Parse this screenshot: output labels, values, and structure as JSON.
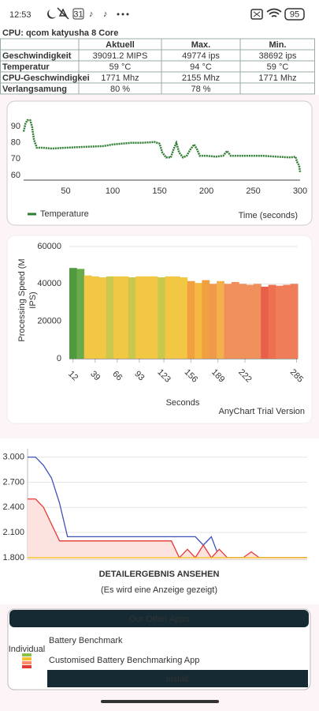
{
  "status_bar": {
    "time": "12:53",
    "calendar_day": "31",
    "battery": "95"
  },
  "header": {
    "cpu": "CPU: qcom katyusha 8 Core"
  },
  "table": {
    "columns": [
      "Aktuell",
      "Max.",
      "Min."
    ],
    "rows": [
      {
        "label": "Geschwindigkeit",
        "cells": [
          "39091.2 MIPS",
          "49774 ips",
          "38692 ips"
        ]
      },
      {
        "label": "Temperatur",
        "cells": [
          "59 °C",
          "94 °C",
          "59 °C"
        ]
      },
      {
        "label": "CPU-Geschwindigkei",
        "cells": [
          "1771 Mhz",
          "2155 Mhz",
          "1771 Mhz"
        ]
      },
      {
        "label": "Verlangsamung",
        "cells": [
          "80 %",
          "78 %"
        ]
      }
    ]
  },
  "chart_data": [
    {
      "type": "line",
      "x_label": "Time (seconds)",
      "series": [
        {
          "name": "Temperature",
          "color": "#2e7d32",
          "x": [
            5,
            7,
            9,
            12,
            14,
            16,
            19,
            25,
            35,
            50,
            70,
            90,
            100,
            110,
            120,
            130,
            145,
            150,
            153,
            157,
            162,
            165,
            168,
            171,
            175,
            179,
            183,
            187,
            190,
            193,
            200,
            210,
            218,
            222,
            226,
            240,
            260,
            275,
            290,
            295,
            297,
            299,
            300
          ],
          "values": [
            87,
            92,
            94,
            94,
            90,
            82,
            77,
            77,
            76.5,
            77,
            77.5,
            78,
            79,
            79.5,
            80,
            80,
            80.5,
            79.5,
            74,
            71,
            71,
            76,
            80,
            74,
            71,
            72,
            76,
            79,
            76,
            72,
            72,
            71.5,
            72,
            75,
            72,
            72,
            72,
            71.5,
            71,
            71.5,
            68,
            66,
            62
          ]
        }
      ],
      "xlim": [
        5,
        300
      ],
      "xticks": [
        50,
        100,
        150,
        200,
        250,
        300
      ],
      "ylim": [
        57,
        96
      ],
      "yticks": [
        60,
        70,
        80,
        90
      ],
      "legend": "bottom-left",
      "grid": false
    },
    {
      "type": "bar",
      "x_label": "Seconds",
      "y_label": [
        "Processing Speed (M",
        "IPS)"
      ],
      "watermark": "AnyChart Trial Version",
      "x": [
        12,
        21,
        30,
        39,
        48,
        57,
        66,
        75,
        84,
        93,
        102,
        111,
        120,
        129,
        138,
        147,
        156,
        165,
        174,
        183,
        192,
        201,
        210,
        219,
        228,
        237,
        246,
        255,
        264,
        273,
        282
      ],
      "values": [
        48500,
        48000,
        44500,
        44000,
        43500,
        44000,
        44000,
        44000,
        43500,
        44000,
        44000,
        44000,
        43500,
        44000,
        44000,
        43500,
        41500,
        40500,
        42000,
        40000,
        41500,
        40000,
        41000,
        40000,
        39500,
        40000,
        38500,
        39500,
        39000,
        39500,
        40000
      ],
      "colors": [
        "#4e9a3e",
        "#6aaa4a",
        "#f2c744",
        "#f2c744",
        "#f2c744",
        "#c9c84c",
        "#f2c744",
        "#f2c744",
        "#c9c84c",
        "#f2c744",
        "#f2c744",
        "#f2c744",
        "#c9c84c",
        "#f2c744",
        "#f2c744",
        "#f2c744",
        "#f0a040",
        "#f5b942",
        "#f0a040",
        "#ee9a4a",
        "#f4b04a",
        "#f0905a",
        "#f0905a",
        "#f0905a",
        "#f0905a",
        "#f0905a",
        "#e8604a",
        "#ee7050",
        "#f07d5a",
        "#f07d5a",
        "#f07d5a"
      ],
      "xlim": [
        7.5,
        286.5
      ],
      "xticks": [
        12,
        39,
        66,
        93,
        123,
        156,
        189,
        222,
        285
      ],
      "ylim": [
        0,
        60000
      ],
      "yticks": [
        0,
        20000,
        40000,
        60000
      ],
      "grid": true
    },
    {
      "type": "line",
      "series": [
        {
          "color": "#3f51b5",
          "values": [
            3.0,
            3.0,
            2.9,
            2.75,
            2.45,
            2.05,
            2.05,
            2.05,
            2.05,
            2.05,
            2.05,
            2.05,
            2.05,
            2.05,
            2.05,
            2.05,
            2.05,
            2.05,
            2.05,
            2.05,
            2.05,
            2.05,
            1.95,
            2.05,
            1.8,
            1.8,
            1.8,
            1.8,
            1.8,
            1.8,
            1.8,
            1.8,
            1.8,
            1.8,
            1.8,
            1.8
          ]
        },
        {
          "color": "#e53935",
          "fill": "#fde3df",
          "values": [
            2.5,
            2.5,
            2.4,
            2.2,
            2.0,
            2.0,
            2.0,
            2.0,
            2.0,
            2.0,
            2.0,
            2.0,
            2.0,
            2.0,
            2.0,
            2.0,
            2.0,
            2.0,
            2.0,
            1.8,
            1.9,
            1.8,
            1.95,
            1.8,
            1.9,
            1.8,
            1.8,
            1.8,
            1.87,
            1.8,
            1.8,
            1.8,
            1.8,
            1.8,
            1.8,
            1.8
          ]
        },
        {
          "color": "#f5c518",
          "values": [
            1.8,
            1.8,
            1.8,
            1.8,
            1.8,
            1.8,
            1.8,
            1.8,
            1.8,
            1.8,
            1.8,
            1.8,
            1.8,
            1.8,
            1.8,
            1.8,
            1.8,
            1.8,
            1.8,
            1.8,
            1.8,
            1.8,
            1.8,
            1.8,
            1.8,
            1.8,
            1.8,
            1.8,
            1.8,
            1.8,
            1.8,
            1.8,
            1.8,
            1.8,
            1.8,
            1.8
          ]
        }
      ],
      "ylim": [
        1.78,
        3.1
      ],
      "yticks": [
        {
          "value": 1.8,
          "label": "1.800"
        },
        {
          "value": 2.1,
          "label": "2.100"
        },
        {
          "value": 2.4,
          "label": "2.400"
        },
        {
          "value": 2.7,
          "label": "2.700"
        },
        {
          "value": 3.0,
          "label": "3.000"
        }
      ],
      "grid": true
    }
  ],
  "detail": {
    "button": "DETAILERGEBNIS ANSEHEN",
    "note": "(Es wird eine Anzeige gezeigt)"
  },
  "other_apps": {
    "title": "Our Other Apps",
    "app_name": "Battery Benchmark",
    "description": "Customised Battery Benchmarking App",
    "icon_label": "Individual",
    "install": "Install"
  }
}
